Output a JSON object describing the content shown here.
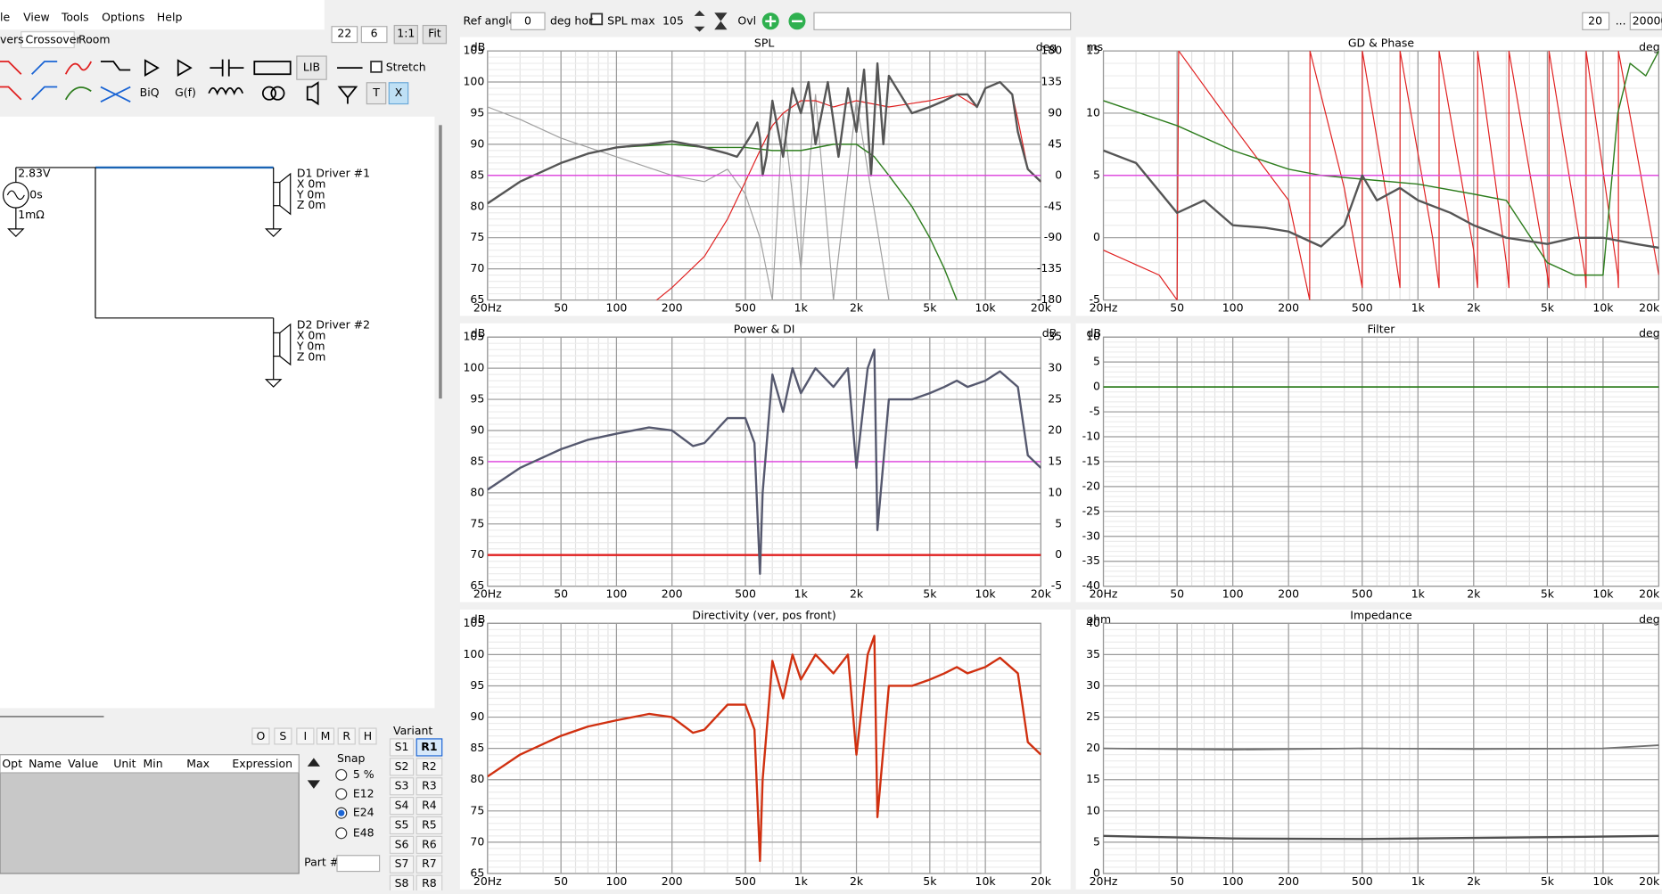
{
  "menu": [
    "le",
    "View",
    "Tools",
    "Options",
    "Help"
  ],
  "zoom": [
    "22",
    "6",
    "1:1",
    "Fit"
  ],
  "tabs": [
    "vers",
    "Crossover",
    "Room"
  ],
  "toolbar": {
    "lib": "LIB",
    "biq": "BiQ",
    "gf": "G(f)",
    "t": "T",
    "x": "X",
    "stretch": "Stretch"
  },
  "circuit": {
    "source": [
      "2.83V",
      "0s",
      "1mΩ"
    ],
    "drivers": [
      {
        "label": "D1 Driver #1",
        "x": "X 0m",
        "y": "Y 0m",
        "z": "Z 0m"
      },
      {
        "label": "D2 Driver #2",
        "x": "X 0m",
        "y": "Y 0m",
        "z": "Z 0m"
      }
    ]
  },
  "modes": [
    "O",
    "S",
    "I",
    "M",
    "R",
    "H"
  ],
  "table_headers": [
    "Opt",
    "Name",
    "Value",
    "Unit",
    "Min",
    "Max",
    "Expression"
  ],
  "snap": {
    "label": "Snap",
    "options": [
      "5 %",
      "E12",
      "E24",
      "E48"
    ]
  },
  "part": "Part #",
  "variant": {
    "label": "Variant",
    "s": [
      "S1",
      "S2",
      "S3",
      "S4",
      "S5",
      "S6",
      "S7",
      "S8"
    ],
    "r": [
      "R1",
      "R2",
      "R3",
      "R4",
      "R5",
      "R6",
      "R7",
      "R8"
    ]
  },
  "topbar": {
    "ref_angle": "Ref angle",
    "angle": "0",
    "deg_hor": "deg hor",
    "spl_max": "SPL max",
    "spl_value": "105",
    "ovl": "Ovl",
    "fmin": "20",
    "ellipsis": "...",
    "fmax": "20000"
  },
  "charts": [
    {
      "type": "line",
      "title": "SPL",
      "y_unit": "dB",
      "y2_unit": "deg",
      "log_x": true,
      "xlim": [
        20,
        20000
      ],
      "xticks": [
        {
          "value": 20,
          "label": "20Hz"
        },
        50,
        100,
        200,
        500,
        {
          "value": 1000,
          "label": "1k"
        },
        {
          "value": 2000,
          "label": "2k"
        },
        {
          "value": 5000,
          "label": "5k"
        },
        {
          "value": 10000,
          "label": "10k"
        },
        {
          "value": 20000,
          "label": "20k"
        }
      ],
      "ylim": [
        65,
        105
      ],
      "yticks": [
        65,
        70,
        75,
        80,
        85,
        90,
        95,
        100,
        105
      ],
      "y2lim": [
        -180,
        180
      ],
      "y2ticks": [
        -180,
        -135,
        -90,
        -45,
        0,
        45,
        90,
        135,
        180
      ],
      "series": [
        {
          "color": "#a0a0a0",
          "width": 1,
          "x": [
            20,
            30,
            50,
            100,
            200,
            300,
            400,
            500,
            600,
            700,
            800,
            1000,
            1200,
            1500,
            2000,
            3000
          ],
          "values": [
            96,
            94,
            91,
            88,
            85,
            84,
            86,
            82,
            75,
            65,
            95,
            70,
            98,
            65,
            97,
            65
          ]
        },
        {
          "color": "#2e7d1e",
          "width": 1.2,
          "x": [
            20,
            30,
            50,
            70,
            100,
            200,
            300,
            500,
            700,
            1000,
            1500,
            2000,
            2500,
            3000,
            4000,
            5000,
            6000,
            7000,
            8000,
            9000
          ],
          "values": [
            80.5,
            84,
            87,
            88.5,
            89.5,
            90,
            89.5,
            89.5,
            89,
            89,
            90,
            90,
            88,
            85,
            80,
            75,
            70,
            65,
            62,
            60
          ]
        },
        {
          "color": "#e02020",
          "width": 1,
          "x": [
            100,
            150,
            200,
            300,
            400,
            500,
            600,
            700,
            800,
            1000,
            1200,
            1500,
            2000,
            3000,
            5000,
            7000,
            9000,
            10000,
            12000,
            14000,
            15000,
            17000,
            20000
          ],
          "values": [
            62,
            64,
            67,
            72,
            78,
            84,
            89,
            93,
            95,
            97,
            97,
            96,
            97,
            96,
            97,
            98,
            96,
            99,
            100,
            98,
            94,
            86,
            84
          ]
        },
        {
          "color": "#555555",
          "width": 2,
          "x": [
            20,
            30,
            50,
            70,
            100,
            150,
            200,
            300,
            400,
            450,
            500,
            550,
            580,
            600,
            620,
            650,
            700,
            800,
            900,
            1000,
            1100,
            1200,
            1400,
            1600,
            1800,
            2000,
            2200,
            2400,
            2600,
            2800,
            3000,
            4000,
            5000,
            6000,
            7000,
            8000,
            9000,
            10000,
            12000,
            14000,
            15000,
            17000,
            20000
          ],
          "values": [
            80.5,
            84,
            87,
            88.5,
            89.5,
            90,
            90.5,
            89.5,
            88.5,
            88,
            90,
            92,
            93.5,
            91,
            85,
            88,
            97,
            88,
            99,
            95,
            100,
            90,
            100,
            88,
            99,
            92,
            102,
            85,
            103,
            90,
            101,
            95,
            96,
            97,
            98,
            98,
            96,
            99,
            100,
            98,
            92,
            86,
            84
          ]
        },
        {
          "color": "#e040e0",
          "width": 1.2,
          "x": [
            20,
            20000
          ],
          "values": [
            85,
            85
          ]
        }
      ]
    },
    {
      "type": "line",
      "title": "GD & Phase",
      "y_unit": "ms",
      "y2_unit": "deg",
      "log_x": true,
      "xlim": [
        20,
        20000
      ],
      "xticks": [
        {
          "value": 20,
          "label": "20Hz"
        },
        50,
        100,
        200,
        500,
        {
          "value": 1000,
          "label": "1k"
        },
        {
          "value": 2000,
          "label": "2k"
        },
        {
          "value": 5000,
          "label": "5k"
        },
        {
          "value": 10000,
          "label": "10k"
        },
        {
          "value": 20000,
          "label": "20k"
        }
      ],
      "ylim": [
        -5,
        15
      ],
      "yticks": [
        -5,
        0,
        5,
        10,
        15
      ],
      "series": [
        {
          "color": "#e02020",
          "width": 1,
          "x": [
            20,
            40,
            50,
            51,
            100,
            200,
            260,
            261,
            400,
            500,
            501,
            700,
            800,
            801,
            1200,
            1300,
            1301,
            2000,
            2100,
            2101,
            3000,
            3100,
            3101,
            5000,
            5100,
            5101,
            8000,
            8100,
            8101,
            12000,
            12100,
            12101,
            20000
          ],
          "values": [
            -1,
            -3,
            -5,
            15,
            9,
            3,
            -5,
            15,
            4,
            -4,
            15,
            2,
            -4,
            15,
            0,
            -4,
            15,
            -1,
            -4,
            15,
            -2,
            -4,
            15,
            -3,
            -4,
            15,
            -3,
            -4,
            15,
            -3,
            -4,
            15,
            -3
          ]
        },
        {
          "color": "#2e7d1e",
          "width": 1.2,
          "x": [
            20,
            50,
            100,
            200,
            300,
            500,
            1000,
            2000,
            3000,
            5000,
            7000,
            10000,
            12000,
            14000,
            17000,
            20000
          ],
          "values": [
            11,
            9,
            7,
            5.5,
            5,
            4.7,
            4.3,
            3.5,
            3,
            -2,
            -3,
            -3,
            10,
            14,
            13,
            15
          ]
        },
        {
          "color": "#e040e0",
          "width": 1.2,
          "x": [
            20,
            20000
          ],
          "values": [
            5,
            5
          ]
        },
        {
          "color": "#555555",
          "width": 2,
          "x": [
            20,
            30,
            50,
            70,
            100,
            150,
            200,
            300,
            400,
            500,
            600,
            800,
            1000,
            1500,
            2000,
            3000,
            5000,
            7000,
            10000,
            15000,
            20000
          ],
          "values": [
            7,
            6,
            2,
            3,
            1,
            0.8,
            0.5,
            -0.7,
            1,
            5,
            3,
            4,
            3,
            2,
            1,
            0,
            -0.5,
            0,
            0,
            -0.5,
            -0.8
          ]
        }
      ]
    },
    {
      "type": "line",
      "title": "Power & DI",
      "y_unit": "dB",
      "y2_unit": "dB",
      "log_x": true,
      "xlim": [
        20,
        20000
      ],
      "xticks": [
        {
          "value": 20,
          "label": "20Hz"
        },
        50,
        100,
        200,
        500,
        {
          "value": 1000,
          "label": "1k"
        },
        {
          "value": 2000,
          "label": "2k"
        },
        {
          "value": 5000,
          "label": "5k"
        },
        {
          "value": 10000,
          "label": "10k"
        },
        {
          "value": 20000,
          "label": "20k"
        }
      ],
      "ylim": [
        65,
        105
      ],
      "yticks": [
        65,
        70,
        75,
        80,
        85,
        90,
        95,
        100,
        105
      ],
      "y2lim": [
        -5,
        35
      ],
      "y2ticks": [
        -5,
        0,
        5,
        10,
        15,
        20,
        25,
        30,
        35
      ],
      "series": [
        {
          "color": "#e040e0",
          "width": 1.2,
          "x": [
            20,
            20000
          ],
          "values": [
            85,
            85
          ]
        },
        {
          "color": "#e02020",
          "width": 2,
          "x": [
            20,
            20000
          ],
          "values": [
            70,
            70
          ]
        },
        {
          "color": "#55586e",
          "width": 2,
          "x": [
            20,
            30,
            50,
            70,
            100,
            150,
            200,
            260,
            300,
            400,
            500,
            560,
            600,
            620,
            700,
            800,
            900,
            1000,
            1200,
            1500,
            1800,
            2000,
            2300,
            2500,
            2600,
            3000,
            4000,
            5000,
            6000,
            7000,
            8000,
            10000,
            12000,
            15000,
            17000,
            20000
          ],
          "values": [
            80.5,
            84,
            87,
            88.5,
            89.5,
            90.5,
            90,
            87.5,
            88,
            92,
            92,
            88,
            67,
            80,
            99,
            93,
            100,
            96,
            100,
            97,
            100,
            84,
            100,
            103,
            74,
            95,
            95,
            96,
            97,
            98,
            97,
            98,
            99.5,
            97,
            86,
            84
          ]
        }
      ]
    },
    {
      "type": "line",
      "title": "Filter",
      "y_unit": "dB",
      "y2_unit": "deg",
      "log_x": true,
      "xlim": [
        20,
        20000
      ],
      "xticks": [
        {
          "value": 20,
          "label": "20Hz"
        },
        50,
        100,
        200,
        500,
        {
          "value": 1000,
          "label": "1k"
        },
        {
          "value": 2000,
          "label": "2k"
        },
        {
          "value": 5000,
          "label": "5k"
        },
        {
          "value": 10000,
          "label": "10k"
        },
        {
          "value": 20000,
          "label": "20k"
        }
      ],
      "ylim": [
        -40,
        10
      ],
      "yticks": [
        -40,
        -35,
        -30,
        -25,
        -20,
        -15,
        -10,
        -5,
        0,
        5,
        10
      ],
      "series": [
        {
          "color": "#2e7d1e",
          "width": 1.5,
          "x": [
            20,
            20000
          ],
          "values": [
            0,
            0
          ]
        }
      ]
    },
    {
      "type": "line",
      "title": "Directivity (ver, pos front)",
      "y_unit": "dB",
      "log_x": true,
      "xlim": [
        20,
        20000
      ],
      "xticks": [
        {
          "value": 20,
          "label": "20Hz"
        },
        50,
        100,
        200,
        500,
        {
          "value": 1000,
          "label": "1k"
        },
        {
          "value": 2000,
          "label": "2k"
        },
        {
          "value": 5000,
          "label": "5k"
        },
        {
          "value": 10000,
          "label": "10k"
        },
        {
          "value": 20000,
          "label": "20k"
        }
      ],
      "ylim": [
        65,
        105
      ],
      "yticks": [
        65,
        70,
        75,
        80,
        85,
        90,
        95,
        100,
        105
      ],
      "series": [
        {
          "color": "#d03010",
          "width": 2,
          "x": [
            20,
            30,
            50,
            70,
            100,
            150,
            200,
            260,
            300,
            400,
            500,
            560,
            600,
            620,
            700,
            800,
            900,
            1000,
            1200,
            1500,
            1800,
            2000,
            2300,
            2500,
            2600,
            3000,
            4000,
            5000,
            6000,
            7000,
            8000,
            10000,
            12000,
            15000,
            17000,
            20000
          ],
          "values": [
            80.5,
            84,
            87,
            88.5,
            89.5,
            90.5,
            90,
            87.5,
            88,
            92,
            92,
            88,
            67,
            80,
            99,
            93,
            100,
            96,
            100,
            97,
            100,
            84,
            100,
            103,
            74,
            95,
            95,
            96,
            97,
            98,
            97,
            98,
            99.5,
            97,
            86,
            84
          ]
        }
      ]
    },
    {
      "type": "line",
      "title": "Impedance",
      "y_unit": "ohm",
      "y2_unit": "deg",
      "log_x": true,
      "xlim": [
        20,
        20000
      ],
      "xticks": [
        {
          "value": 20,
          "label": "20Hz"
        },
        50,
        100,
        200,
        500,
        {
          "value": 1000,
          "label": "1k"
        },
        {
          "value": 2000,
          "label": "2k"
        },
        {
          "value": 5000,
          "label": "5k"
        },
        {
          "value": 10000,
          "label": "10k"
        },
        {
          "value": 20000,
          "label": "20k"
        }
      ],
      "ylim": [
        0,
        40
      ],
      "yticks": [
        0,
        5,
        10,
        15,
        20,
        25,
        30,
        35,
        40
      ],
      "series": [
        {
          "color": "#707070",
          "width": 1.5,
          "x": [
            20,
            100,
            500,
            2000,
            10000,
            20000
          ],
          "values": [
            20,
            19.8,
            20,
            19.9,
            20,
            20.5
          ]
        },
        {
          "color": "#505050",
          "width": 2,
          "x": [
            20,
            100,
            500,
            2000,
            10000,
            20000
          ],
          "values": [
            6,
            5.6,
            5.5,
            5.7,
            5.9,
            6
          ]
        }
      ]
    }
  ]
}
